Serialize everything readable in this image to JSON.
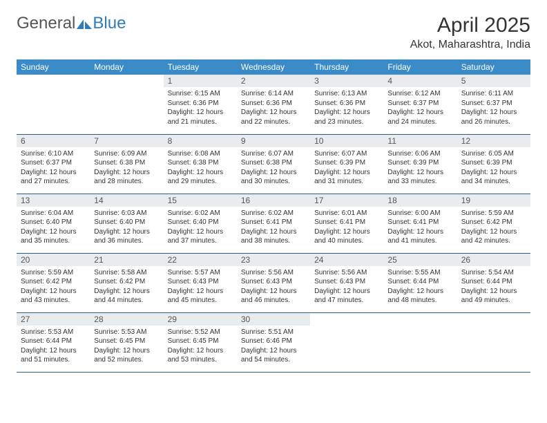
{
  "brand": {
    "part1": "General",
    "part2": "Blue"
  },
  "title": "April 2025",
  "location": "Akot, Maharashtra, India",
  "colors": {
    "header_bg": "#3b8bc9",
    "header_text": "#ffffff",
    "daynum_bg": "#e9ecef",
    "row_border": "#2a5a8a",
    "brand_gray": "#555555",
    "brand_blue": "#2f7bbf",
    "page_bg": "#ffffff"
  },
  "weekdays": [
    "Sunday",
    "Monday",
    "Tuesday",
    "Wednesday",
    "Thursday",
    "Friday",
    "Saturday"
  ],
  "rows": [
    [
      {
        "empty": true
      },
      {
        "empty": true
      },
      {
        "n": "1",
        "sr": "Sunrise: 6:15 AM",
        "ss": "Sunset: 6:36 PM",
        "d1": "Daylight: 12 hours",
        "d2": "and 21 minutes."
      },
      {
        "n": "2",
        "sr": "Sunrise: 6:14 AM",
        "ss": "Sunset: 6:36 PM",
        "d1": "Daylight: 12 hours",
        "d2": "and 22 minutes."
      },
      {
        "n": "3",
        "sr": "Sunrise: 6:13 AM",
        "ss": "Sunset: 6:36 PM",
        "d1": "Daylight: 12 hours",
        "d2": "and 23 minutes."
      },
      {
        "n": "4",
        "sr": "Sunrise: 6:12 AM",
        "ss": "Sunset: 6:37 PM",
        "d1": "Daylight: 12 hours",
        "d2": "and 24 minutes."
      },
      {
        "n": "5",
        "sr": "Sunrise: 6:11 AM",
        "ss": "Sunset: 6:37 PM",
        "d1": "Daylight: 12 hours",
        "d2": "and 26 minutes."
      }
    ],
    [
      {
        "n": "6",
        "sr": "Sunrise: 6:10 AM",
        "ss": "Sunset: 6:37 PM",
        "d1": "Daylight: 12 hours",
        "d2": "and 27 minutes."
      },
      {
        "n": "7",
        "sr": "Sunrise: 6:09 AM",
        "ss": "Sunset: 6:38 PM",
        "d1": "Daylight: 12 hours",
        "d2": "and 28 minutes."
      },
      {
        "n": "8",
        "sr": "Sunrise: 6:08 AM",
        "ss": "Sunset: 6:38 PM",
        "d1": "Daylight: 12 hours",
        "d2": "and 29 minutes."
      },
      {
        "n": "9",
        "sr": "Sunrise: 6:07 AM",
        "ss": "Sunset: 6:38 PM",
        "d1": "Daylight: 12 hours",
        "d2": "and 30 minutes."
      },
      {
        "n": "10",
        "sr": "Sunrise: 6:07 AM",
        "ss": "Sunset: 6:39 PM",
        "d1": "Daylight: 12 hours",
        "d2": "and 31 minutes."
      },
      {
        "n": "11",
        "sr": "Sunrise: 6:06 AM",
        "ss": "Sunset: 6:39 PM",
        "d1": "Daylight: 12 hours",
        "d2": "and 33 minutes."
      },
      {
        "n": "12",
        "sr": "Sunrise: 6:05 AM",
        "ss": "Sunset: 6:39 PM",
        "d1": "Daylight: 12 hours",
        "d2": "and 34 minutes."
      }
    ],
    [
      {
        "n": "13",
        "sr": "Sunrise: 6:04 AM",
        "ss": "Sunset: 6:40 PM",
        "d1": "Daylight: 12 hours",
        "d2": "and 35 minutes."
      },
      {
        "n": "14",
        "sr": "Sunrise: 6:03 AM",
        "ss": "Sunset: 6:40 PM",
        "d1": "Daylight: 12 hours",
        "d2": "and 36 minutes."
      },
      {
        "n": "15",
        "sr": "Sunrise: 6:02 AM",
        "ss": "Sunset: 6:40 PM",
        "d1": "Daylight: 12 hours",
        "d2": "and 37 minutes."
      },
      {
        "n": "16",
        "sr": "Sunrise: 6:02 AM",
        "ss": "Sunset: 6:41 PM",
        "d1": "Daylight: 12 hours",
        "d2": "and 38 minutes."
      },
      {
        "n": "17",
        "sr": "Sunrise: 6:01 AM",
        "ss": "Sunset: 6:41 PM",
        "d1": "Daylight: 12 hours",
        "d2": "and 40 minutes."
      },
      {
        "n": "18",
        "sr": "Sunrise: 6:00 AM",
        "ss": "Sunset: 6:41 PM",
        "d1": "Daylight: 12 hours",
        "d2": "and 41 minutes."
      },
      {
        "n": "19",
        "sr": "Sunrise: 5:59 AM",
        "ss": "Sunset: 6:42 PM",
        "d1": "Daylight: 12 hours",
        "d2": "and 42 minutes."
      }
    ],
    [
      {
        "n": "20",
        "sr": "Sunrise: 5:59 AM",
        "ss": "Sunset: 6:42 PM",
        "d1": "Daylight: 12 hours",
        "d2": "and 43 minutes."
      },
      {
        "n": "21",
        "sr": "Sunrise: 5:58 AM",
        "ss": "Sunset: 6:42 PM",
        "d1": "Daylight: 12 hours",
        "d2": "and 44 minutes."
      },
      {
        "n": "22",
        "sr": "Sunrise: 5:57 AM",
        "ss": "Sunset: 6:43 PM",
        "d1": "Daylight: 12 hours",
        "d2": "and 45 minutes."
      },
      {
        "n": "23",
        "sr": "Sunrise: 5:56 AM",
        "ss": "Sunset: 6:43 PM",
        "d1": "Daylight: 12 hours",
        "d2": "and 46 minutes."
      },
      {
        "n": "24",
        "sr": "Sunrise: 5:56 AM",
        "ss": "Sunset: 6:43 PM",
        "d1": "Daylight: 12 hours",
        "d2": "and 47 minutes."
      },
      {
        "n": "25",
        "sr": "Sunrise: 5:55 AM",
        "ss": "Sunset: 6:44 PM",
        "d1": "Daylight: 12 hours",
        "d2": "and 48 minutes."
      },
      {
        "n": "26",
        "sr": "Sunrise: 5:54 AM",
        "ss": "Sunset: 6:44 PM",
        "d1": "Daylight: 12 hours",
        "d2": "and 49 minutes."
      }
    ],
    [
      {
        "n": "27",
        "sr": "Sunrise: 5:53 AM",
        "ss": "Sunset: 6:44 PM",
        "d1": "Daylight: 12 hours",
        "d2": "and 51 minutes."
      },
      {
        "n": "28",
        "sr": "Sunrise: 5:53 AM",
        "ss": "Sunset: 6:45 PM",
        "d1": "Daylight: 12 hours",
        "d2": "and 52 minutes."
      },
      {
        "n": "29",
        "sr": "Sunrise: 5:52 AM",
        "ss": "Sunset: 6:45 PM",
        "d1": "Daylight: 12 hours",
        "d2": "and 53 minutes."
      },
      {
        "n": "30",
        "sr": "Sunrise: 5:51 AM",
        "ss": "Sunset: 6:46 PM",
        "d1": "Daylight: 12 hours",
        "d2": "and 54 minutes."
      },
      {
        "empty": true
      },
      {
        "empty": true
      },
      {
        "empty": true
      }
    ]
  ]
}
